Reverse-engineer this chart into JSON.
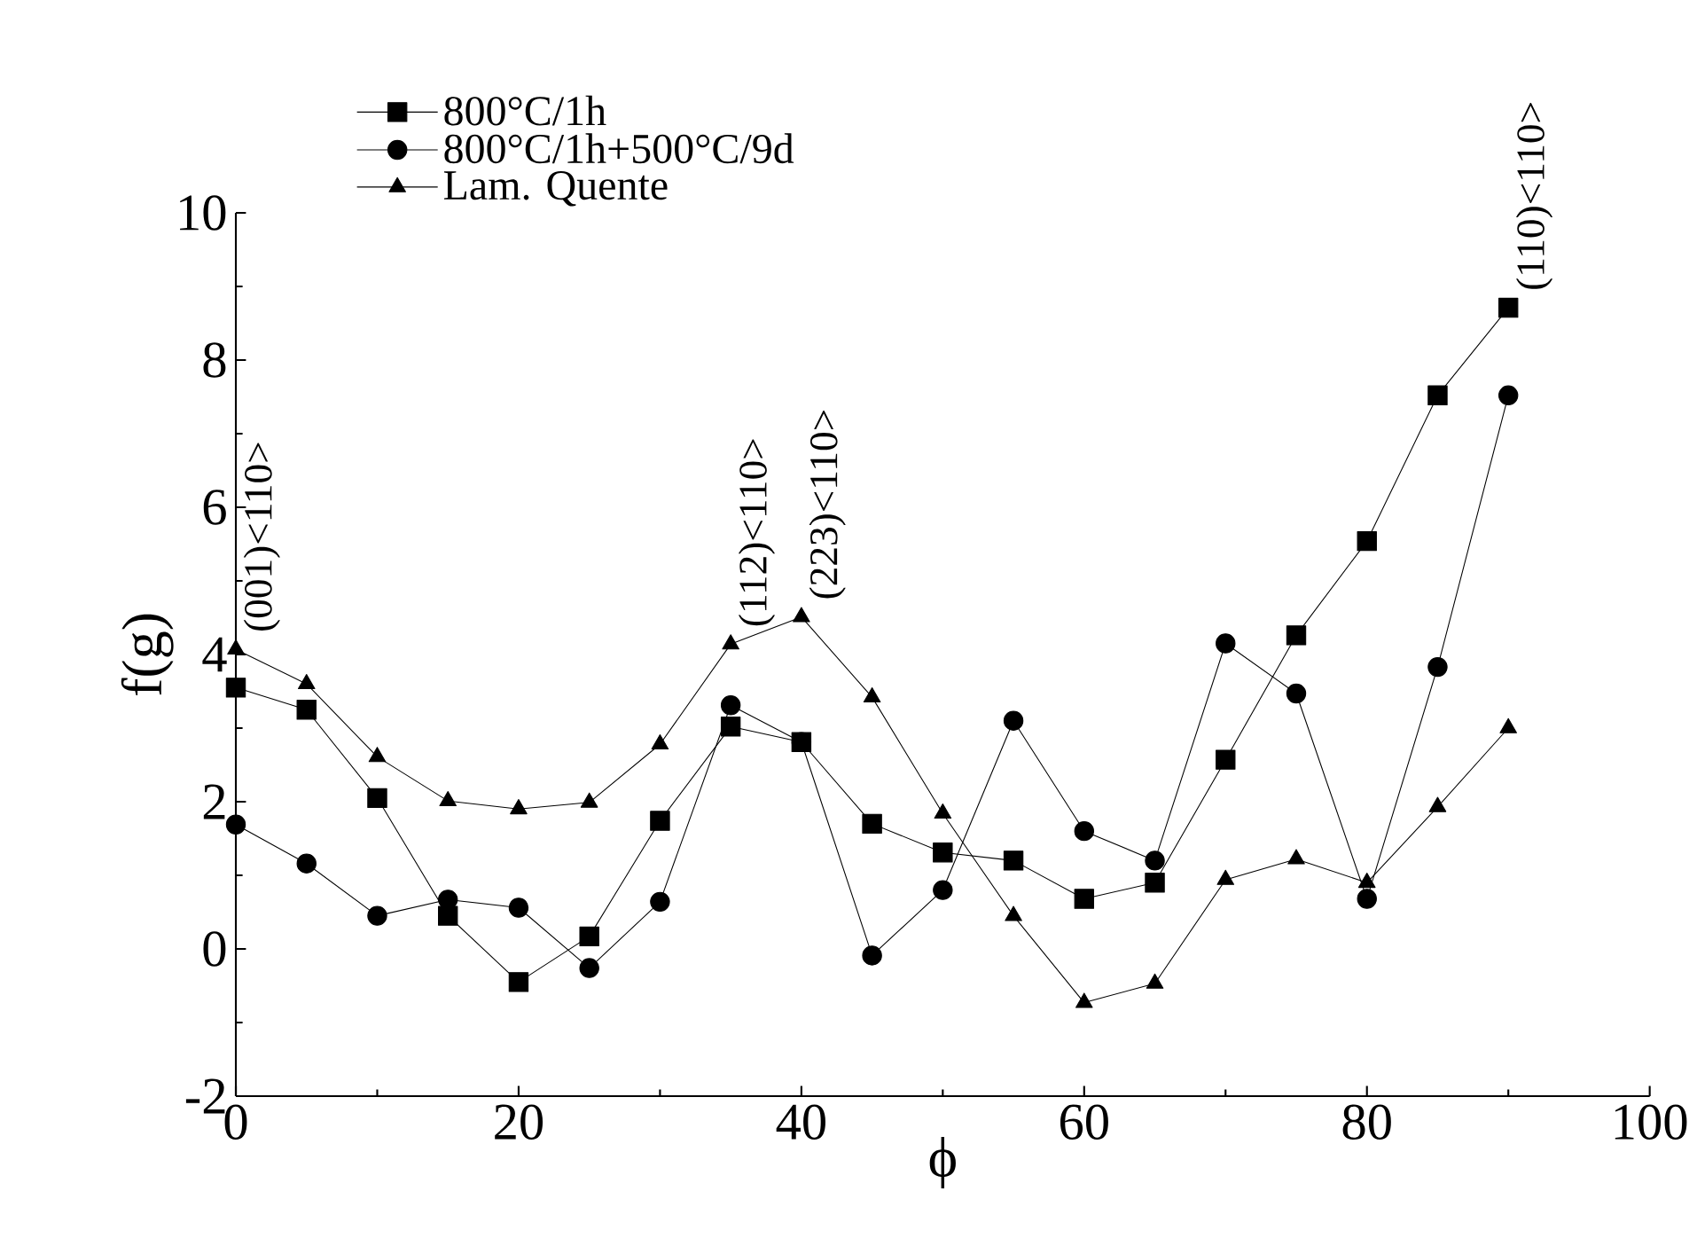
{
  "chart_data": {
    "type": "line",
    "xlabel": "ϕ",
    "ylabel": "f(g)",
    "x": [
      0,
      5,
      10,
      15,
      20,
      25,
      30,
      35,
      40,
      45,
      50,
      55,
      60,
      65,
      70,
      75,
      80,
      85,
      90
    ],
    "series": [
      {
        "name": "800°C/1h",
        "color": "#000000",
        "marker": "square",
        "values": [
          3.55,
          3.25,
          2.05,
          0.45,
          -0.45,
          0.17,
          1.74,
          3.02,
          2.81,
          1.7,
          1.31,
          1.2,
          0.68,
          0.9,
          2.57,
          4.26,
          5.54,
          7.52,
          8.71
        ]
      },
      {
        "name": "800°C/1h+500°C/9d",
        "color": "#000000",
        "marker": "circle",
        "values": [
          1.69,
          1.16,
          0.45,
          0.67,
          0.56,
          -0.26,
          0.64,
          3.31,
          2.81,
          -0.09,
          0.8,
          3.1,
          1.6,
          1.2,
          4.15,
          3.47,
          0.68,
          3.83,
          7.52
        ]
      },
      {
        "name": "Lam. Quente",
        "color": "#000000",
        "marker": "triangle",
        "values": [
          4.07,
          3.6,
          2.61,
          2.01,
          1.9,
          1.99,
          2.78,
          4.14,
          4.51,
          3.42,
          1.84,
          0.45,
          -0.73,
          -0.47,
          0.94,
          1.22,
          0.9,
          1.93,
          3.0
        ]
      }
    ],
    "xlim": [
      0,
      100
    ],
    "xticks": [
      0,
      20,
      40,
      60,
      80,
      100
    ],
    "ylim": [
      -2,
      10
    ],
    "yticks": [
      -2,
      0,
      2,
      4,
      6,
      8,
      10
    ],
    "legend": "top left",
    "line_style": "solid",
    "annotations": [
      {
        "text": "(001)<110>",
        "x": 0,
        "y": 4.07
      },
      {
        "text": "(112)<110>",
        "x": 35,
        "y": 4.14
      },
      {
        "text": "(223)<110>",
        "x": 40,
        "y": 4.51
      },
      {
        "text": "(110)<110>",
        "x": 90,
        "y": 8.71
      }
    ]
  }
}
